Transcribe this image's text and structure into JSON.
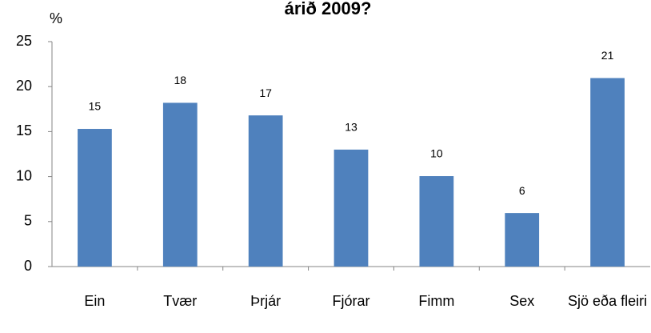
{
  "chart_data": {
    "type": "bar",
    "title": "árið 2009?",
    "ylabel": "%",
    "categories": [
      "Ein",
      "Tvær",
      "Þrjár",
      "Fjórar",
      "Fimm",
      "Sex",
      "Sjö eða fleiri"
    ],
    "values": [
      15.3,
      18.2,
      16.8,
      13.0,
      10.05,
      5.95,
      20.95
    ],
    "value_labels": [
      "15",
      "18",
      "17",
      "13",
      "10",
      "6",
      "21"
    ],
    "color": "#4f81bd",
    "ylim": [
      0,
      25
    ],
    "yticks": [
      0,
      5,
      10,
      15,
      20,
      25
    ],
    "grid": false
  }
}
